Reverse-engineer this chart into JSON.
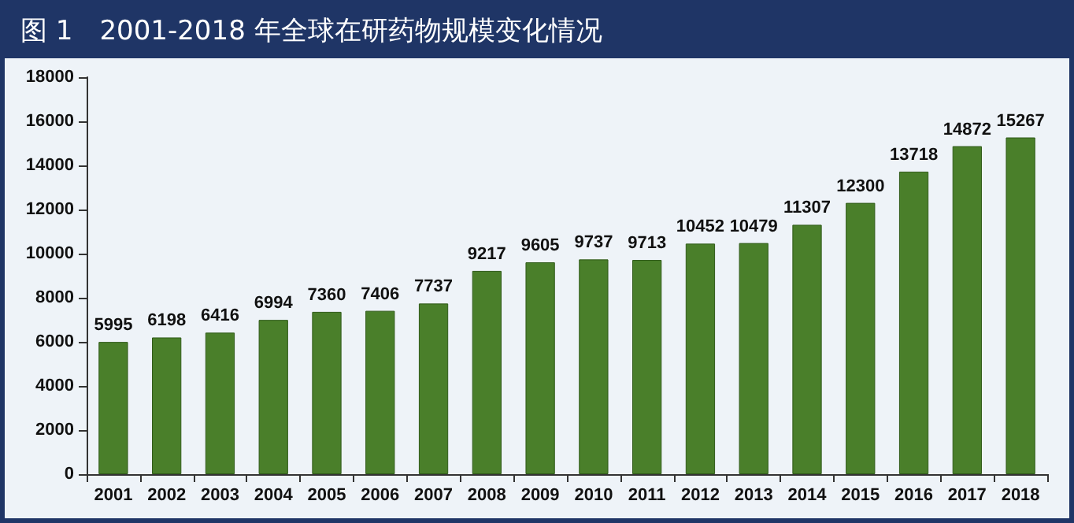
{
  "chart_data": {
    "type": "bar",
    "title": "图 1　2001-2018 年全球在研药物规模变化情况",
    "categories": [
      "2001",
      "2002",
      "2003",
      "2004",
      "2005",
      "2006",
      "2007",
      "2008",
      "2009",
      "2010",
      "2011",
      "2012",
      "2013",
      "2014",
      "2015",
      "2016",
      "2017",
      "2018"
    ],
    "values": [
      5995,
      6198,
      6416,
      6994,
      7360,
      7406,
      7737,
      9217,
      9605,
      9737,
      9713,
      10452,
      10479,
      11307,
      12300,
      13718,
      14872,
      15267
    ],
    "color": "#4a7f2a",
    "ylim": [
      0,
      18000
    ],
    "yticks": [
      0,
      2000,
      4000,
      6000,
      8000,
      10000,
      12000,
      14000,
      16000,
      18000
    ],
    "grid": false,
    "data_labels": true
  }
}
